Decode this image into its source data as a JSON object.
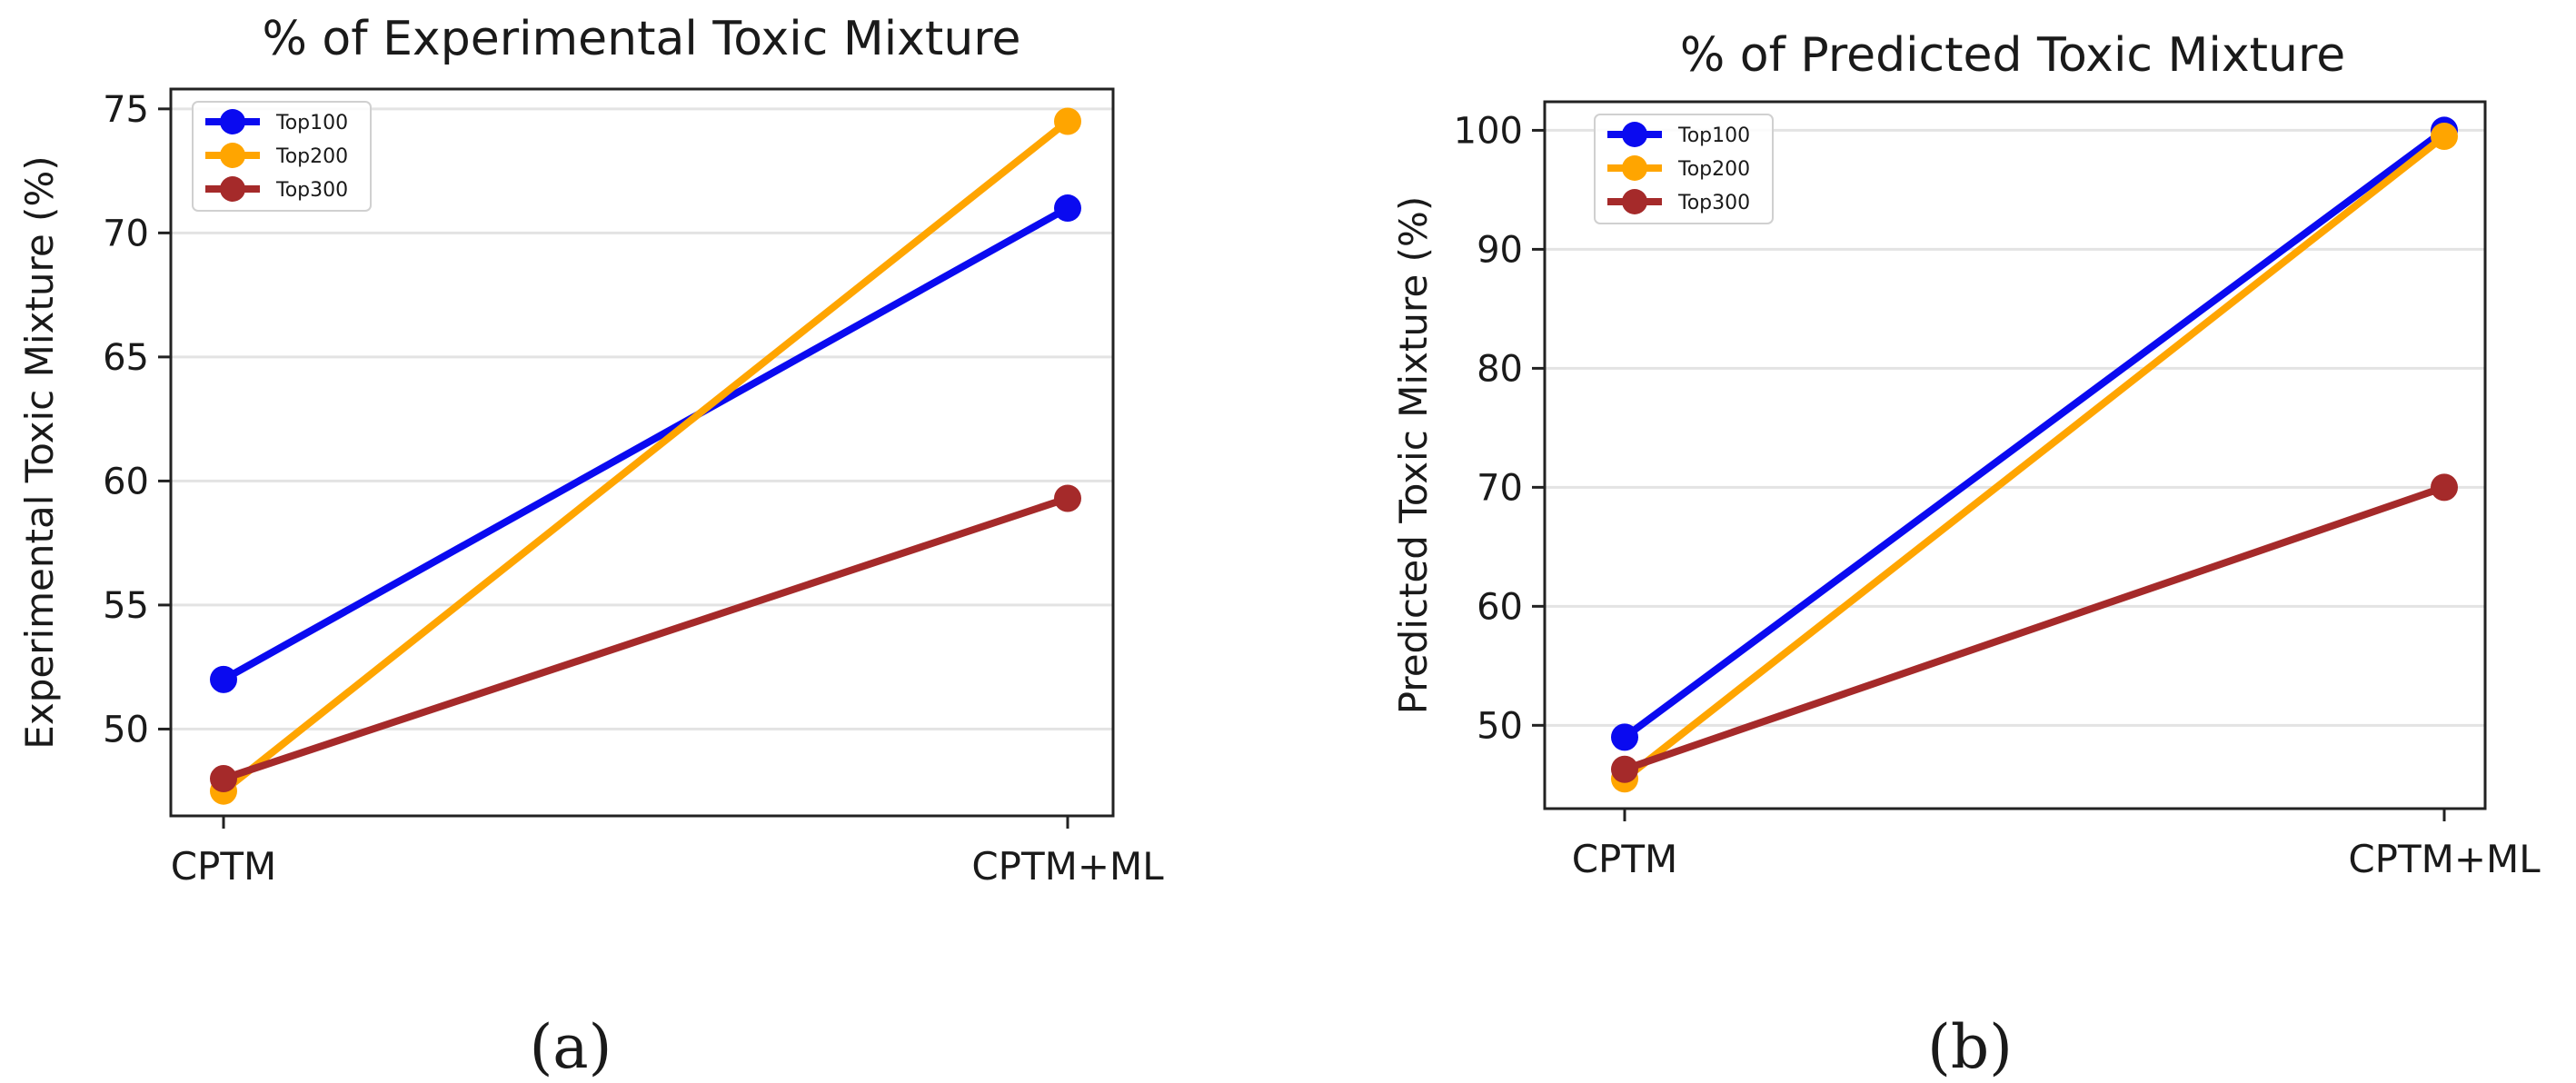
{
  "chart_data": [
    {
      "type": "line",
      "panel_label": "(a)",
      "title": "% of Experimental Toxic Mixture",
      "xlabel": "",
      "ylabel": "Experimental Toxic Mixture (%)",
      "categories": [
        "CPTM",
        "CPTM+ML"
      ],
      "ylim": [
        46.5,
        75.8
      ],
      "yticks": [
        50,
        55,
        60,
        65,
        70,
        75
      ],
      "grid": "horizontal",
      "legend": "top-left",
      "series": [
        {
          "name": "Top100",
          "color": "#0a0af0",
          "values": [
            52.0,
            71.0
          ]
        },
        {
          "name": "Top200",
          "color": "#ffa500",
          "values": [
            47.5,
            74.5
          ]
        },
        {
          "name": "Top300",
          "color": "#a52a2a",
          "values": [
            48.0,
            59.3
          ]
        }
      ]
    },
    {
      "type": "line",
      "panel_label": "(b)",
      "title": "% of Predicted Toxic Mixture",
      "xlabel": "",
      "ylabel": "Predicted Toxic Mixture (%)",
      "categories": [
        "CPTM",
        "CPTM+ML"
      ],
      "ylim": [
        43.0,
        102.4
      ],
      "yticks": [
        50,
        60,
        70,
        80,
        90,
        100
      ],
      "grid": "horizontal",
      "legend": "top-left",
      "series": [
        {
          "name": "Top100",
          "color": "#0a0af0",
          "values": [
            49.0,
            100.0
          ]
        },
        {
          "name": "Top200",
          "color": "#ffa500",
          "values": [
            45.5,
            99.5
          ]
        },
        {
          "name": "Top300",
          "color": "#a52a2a",
          "values": [
            46.3,
            70.0
          ]
        }
      ]
    }
  ]
}
